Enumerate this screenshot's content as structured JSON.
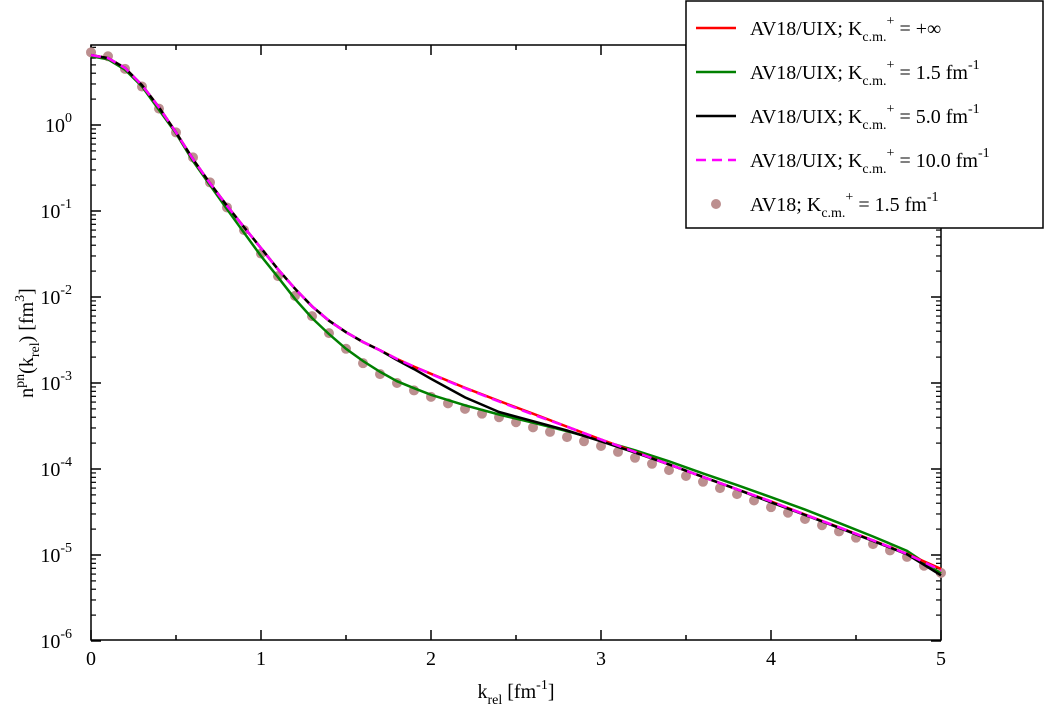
{
  "chart_data": {
    "type": "line",
    "title": "",
    "xlabel": {
      "main": "k",
      "sub": "rel",
      "rest": " [fm",
      "sup": "-1",
      "end": "]"
    },
    "ylabel": {
      "main": "n",
      "sup1": "pn",
      "mid": "(k",
      "sub": "rel",
      "mid2": ") [fm",
      "sup2": "3",
      "end": "]"
    },
    "xlim": [
      0,
      5
    ],
    "ylim": [
      1e-06,
      8
    ],
    "yscale": "log",
    "x_ticks": [
      "0",
      "1",
      "2",
      "3",
      "4",
      "5"
    ],
    "y_ticks": [
      {
        "base": "10",
        "exp": "0"
      },
      {
        "base": "10",
        "exp": "-1"
      },
      {
        "base": "10",
        "exp": "-2"
      },
      {
        "base": "10",
        "exp": "-3"
      },
      {
        "base": "10",
        "exp": "-4"
      },
      {
        "base": "10",
        "exp": "-5"
      },
      {
        "base": "10",
        "exp": "-6"
      }
    ],
    "legend_position": "top-right",
    "series": [
      {
        "name": "AV18/UIX; K_c.m.^+ = +∞",
        "legend": {
          "pre": "AV18/UIX; K",
          "sub": "c.m.",
          "sup": "+",
          "post": " = +∞",
          "sup2": ""
        },
        "color": "#ff0000",
        "style": "solid",
        "x": [
          0,
          0.1,
          0.2,
          0.3,
          0.4,
          0.5,
          0.6,
          0.7,
          0.8,
          0.9,
          1.0,
          1.1,
          1.2,
          1.3,
          1.4,
          1.5,
          1.6,
          1.7,
          1.8,
          1.9,
          2.0,
          2.2,
          2.4,
          2.6,
          2.8,
          3.0,
          3.2,
          3.4,
          3.6,
          3.8,
          4.0,
          4.2,
          4.4,
          4.6,
          4.8,
          5.0
        ],
        "y": [
          6.5,
          6.0,
          4.6,
          2.9,
          1.6,
          0.82,
          0.4,
          0.21,
          0.115,
          0.065,
          0.037,
          0.021,
          0.0125,
          0.0078,
          0.0053,
          0.0039,
          0.003,
          0.0024,
          0.0019,
          0.00155,
          0.00128,
          0.00088,
          0.00062,
          0.00044,
          0.00031,
          0.00022,
          0.000158,
          0.000113,
          8.1e-05,
          5.8e-05,
          4.2e-05,
          2.95e-05,
          2.1e-05,
          1.48e-05,
          1.03e-05,
          6.9e-06
        ]
      },
      {
        "name": "AV18/UIX; K_c.m.^+ = 1.5 fm^-1",
        "legend": {
          "pre": "AV18/UIX; K",
          "sub": "c.m.",
          "sup": "+",
          "post": " = 1.5 fm",
          "sup2": "-1"
        },
        "color": "#008000",
        "style": "solid",
        "x": [
          0,
          0.1,
          0.2,
          0.3,
          0.4,
          0.5,
          0.6,
          0.7,
          0.8,
          0.9,
          1.0,
          1.1,
          1.2,
          1.3,
          1.4,
          1.5,
          1.6,
          1.7,
          1.8,
          1.9,
          2.0,
          2.2,
          2.4,
          2.6,
          2.8,
          3.0,
          3.2,
          3.4,
          3.6,
          3.8,
          4.0,
          4.2,
          4.4,
          4.6,
          4.8,
          5.0
        ],
        "y": [
          6.3,
          5.8,
          4.4,
          2.8,
          1.5,
          0.8,
          0.38,
          0.2,
          0.105,
          0.056,
          0.03,
          0.017,
          0.0095,
          0.0057,
          0.0037,
          0.0025,
          0.0018,
          0.00135,
          0.00105,
          0.00087,
          0.00073,
          0.00055,
          0.00043,
          0.000345,
          0.000275,
          0.000215,
          0.000165,
          0.000123,
          8.9e-05,
          6.5e-05,
          4.7e-05,
          3.37e-05,
          2.36e-05,
          1.64e-05,
          1.12e-05,
          6.1e-06
        ]
      },
      {
        "name": "AV18/UIX; K_c.m.^+ = 5.0 fm^-1",
        "legend": {
          "pre": "AV18/UIX; K",
          "sub": "c.m.",
          "sup": "+",
          "post": " = 5.0 fm",
          "sup2": "-1"
        },
        "color": "#000000",
        "style": "solid",
        "x": [
          0,
          0.1,
          0.2,
          0.3,
          0.4,
          0.5,
          0.6,
          0.7,
          0.8,
          0.9,
          1.0,
          1.1,
          1.2,
          1.3,
          1.4,
          1.5,
          1.6,
          1.7,
          1.8,
          1.9,
          2.0,
          2.2,
          2.4,
          2.6,
          2.8,
          3.0,
          3.2,
          3.4,
          3.6,
          3.8,
          4.0,
          4.2,
          4.4,
          4.6,
          4.8,
          5.0
        ],
        "y": [
          6.5,
          6.0,
          4.6,
          2.9,
          1.6,
          0.82,
          0.4,
          0.21,
          0.115,
          0.065,
          0.037,
          0.021,
          0.0125,
          0.0078,
          0.0053,
          0.0039,
          0.003,
          0.0024,
          0.00185,
          0.00145,
          0.00112,
          0.00068,
          0.00046,
          0.00036,
          0.00028,
          0.00021,
          0.000155,
          0.000113,
          8.1e-05,
          5.8e-05,
          4.1e-05,
          2.92e-05,
          2.07e-05,
          1.46e-05,
          1.02e-05,
          5.8e-06
        ]
      },
      {
        "name": "AV18/UIX; K_c.m.^+ = 10.0 fm^-1",
        "legend": {
          "pre": "AV18/UIX; K",
          "sub": "c.m.",
          "sup": "+",
          "post": " = 10.0 fm",
          "sup2": "-1"
        },
        "color": "#ff00ff",
        "style": "dashed",
        "x": [
          0,
          0.1,
          0.2,
          0.3,
          0.4,
          0.5,
          0.6,
          0.7,
          0.8,
          0.9,
          1.0,
          1.1,
          1.2,
          1.3,
          1.4,
          1.5,
          1.6,
          1.7,
          1.8,
          1.9,
          2.0,
          2.2,
          2.4,
          2.6,
          2.8,
          3.0,
          3.2,
          3.4,
          3.6,
          3.8,
          4.0,
          4.2,
          4.4,
          4.6,
          4.8,
          5.0
        ],
        "y": [
          6.5,
          6.0,
          4.6,
          2.9,
          1.6,
          0.82,
          0.4,
          0.21,
          0.115,
          0.065,
          0.037,
          0.021,
          0.0125,
          0.0078,
          0.0053,
          0.0039,
          0.003,
          0.0024,
          0.0019,
          0.00155,
          0.00127,
          0.00087,
          0.00061,
          0.00043,
          0.00031,
          0.00022,
          0.000158,
          0.000113,
          8.1e-05,
          5.8e-05,
          4.2e-05,
          2.95e-05,
          2.1e-05,
          1.48e-05,
          1.03e-05,
          6.6e-06
        ]
      },
      {
        "name": "AV18; K_c.m.^+ = 1.5 fm^-1",
        "legend": {
          "pre": "AV18; K",
          "sub": "c.m.",
          "sup": "+",
          "post": " = 1.5 fm",
          "sup2": "-1"
        },
        "color": "#bc8f8f",
        "style": "markers",
        "x": [
          0,
          0.1,
          0.2,
          0.3,
          0.4,
          0.5,
          0.6,
          0.7,
          0.8,
          0.9,
          1.0,
          1.1,
          1.2,
          1.3,
          1.4,
          1.5,
          1.6,
          1.7,
          1.8,
          1.9,
          2.0,
          2.1,
          2.2,
          2.3,
          2.4,
          2.5,
          2.6,
          2.7,
          2.8,
          2.9,
          3.0,
          3.1,
          3.2,
          3.3,
          3.4,
          3.5,
          3.6,
          3.7,
          3.8,
          3.9,
          4.0,
          4.1,
          4.2,
          4.3,
          4.4,
          4.5,
          4.6,
          4.7,
          4.8,
          4.9,
          5.0
        ],
        "y": [
          7.0,
          6.3,
          4.5,
          2.8,
          1.55,
          0.82,
          0.42,
          0.215,
          0.11,
          0.06,
          0.032,
          0.0175,
          0.0103,
          0.006,
          0.0038,
          0.0025,
          0.0017,
          0.00127,
          0.001,
          0.00082,
          0.00069,
          0.00058,
          0.0005,
          0.00044,
          0.0004,
          0.00035,
          0.000305,
          0.00027,
          0.000235,
          0.00021,
          0.000185,
          0.000158,
          0.000135,
          0.000115,
          9.7e-05,
          8.3e-05,
          7.1e-05,
          6e-05,
          5.1e-05,
          4.3e-05,
          3.6e-05,
          3.1e-05,
          2.62e-05,
          2.22e-05,
          1.88e-05,
          1.59e-05,
          1.34e-05,
          1.13e-05,
          9.5e-06,
          7.5e-06,
          6.2e-06
        ]
      }
    ]
  }
}
